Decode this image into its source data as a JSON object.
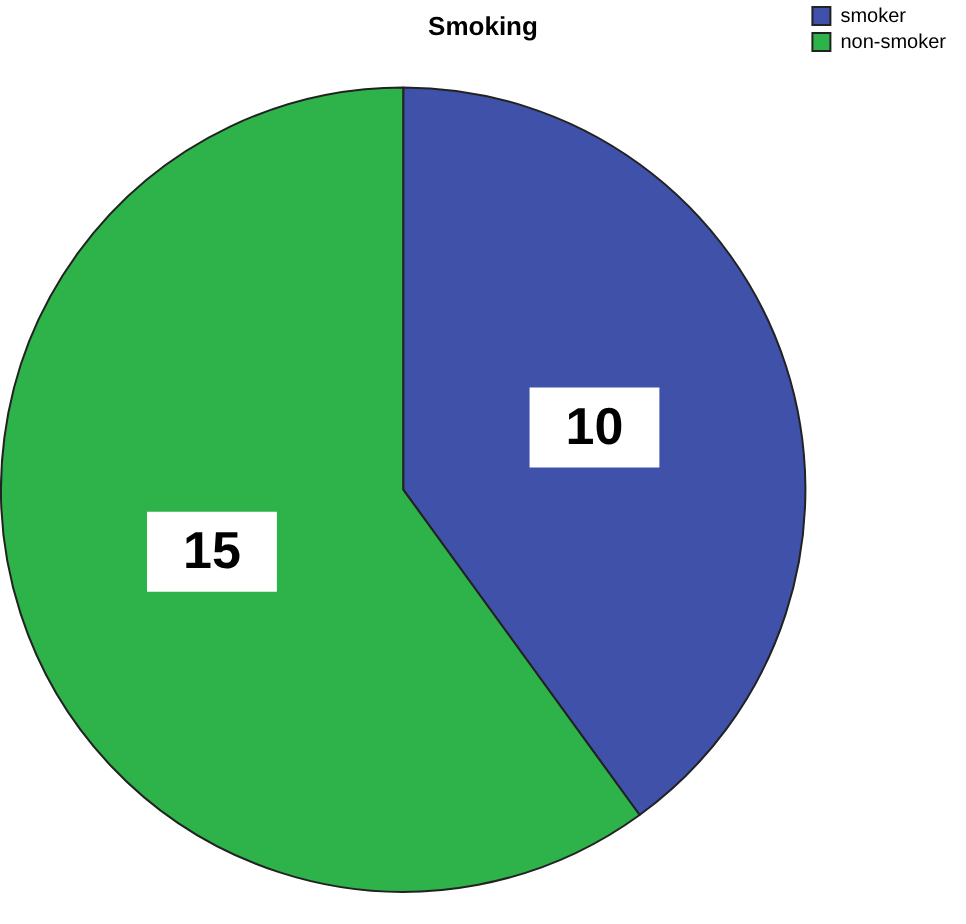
{
  "chart_data": {
    "type": "pie",
    "title": "Smoking",
    "categories": [
      "smoker",
      "non-smoker"
    ],
    "values": [
      10,
      15
    ],
    "colors": [
      "#3f51a8",
      "#2db34a"
    ],
    "legend": "top right",
    "data_labels": true
  }
}
